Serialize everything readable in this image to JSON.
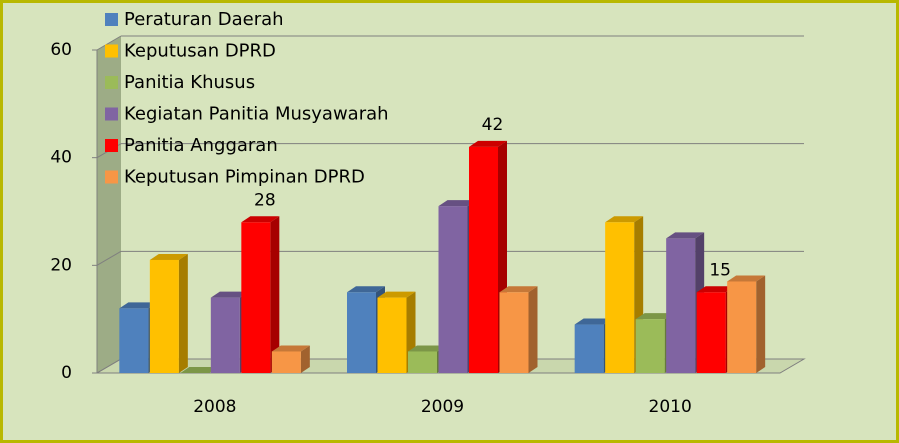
{
  "chart_data": {
    "type": "bar3d",
    "categories": [
      "2008",
      "2009",
      "2010"
    ],
    "series": [
      {
        "name": "Peraturan Daerah",
        "color": "#4f81bd",
        "values": [
          12,
          15,
          9
        ]
      },
      {
        "name": "Keputusan DPRD",
        "color": "#ffc000",
        "values": [
          21,
          14,
          28
        ]
      },
      {
        "name": "Panitia Khusus",
        "color": "#9bbb59",
        "values": [
          0,
          4,
          10
        ]
      },
      {
        "name": "Kegiatan Panitia Musyawarah",
        "color": "#8064a2",
        "values": [
          14,
          31,
          25
        ]
      },
      {
        "name": "Panitia Anggaran",
        "color": "#ff0000",
        "values": [
          28,
          42,
          15
        ],
        "show_value_labels": true
      },
      {
        "name": "Keputusan Pimpinan DPRD",
        "color": "#f79646",
        "values": [
          4,
          15,
          17
        ]
      }
    ],
    "ylim": [
      0,
      60
    ],
    "yticks": [
      0,
      20,
      40,
      60
    ],
    "grid": true,
    "legend": "top-left"
  }
}
